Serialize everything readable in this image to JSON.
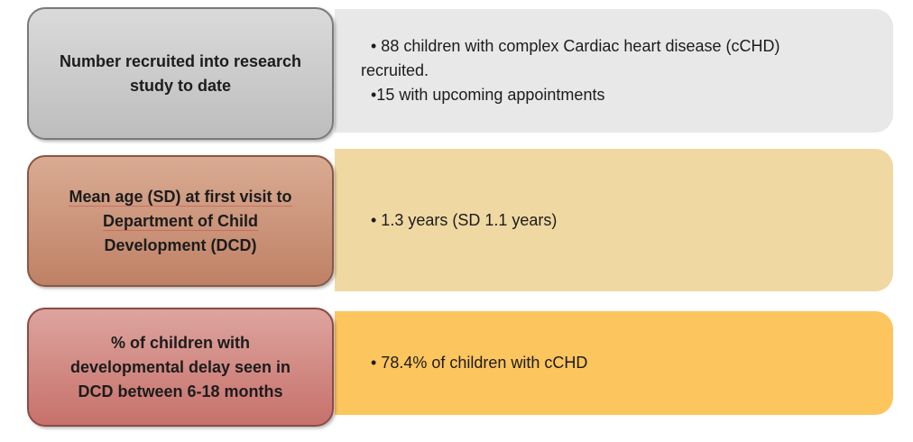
{
  "page": {
    "background": "#ffffff",
    "text_color": "#1c1c1c"
  },
  "rows": [
    {
      "label_lines": [
        {
          "text": "Number recruited into research"
        },
        {
          "text": "study to date"
        }
      ],
      "bullets": [
        "• 88 children with complex Cardiac heart disease (cCHD) recruited.",
        "•15 with upcoming appointments"
      ],
      "colors": {
        "label_gradient_top": "#dadada",
        "label_gradient_bottom": "#bdbdbd",
        "label_border": "#7a7a7a",
        "content_bg": "#e8e8e8"
      }
    },
    {
      "label_lines": [
        {
          "text": "Mean age (SD) at first visit to",
          "u": true
        },
        {
          "text": "Department of Child",
          "u": true
        },
        {
          "text": "Development (DCD)"
        }
      ],
      "bullets": [
        "• 1.3 years (SD 1.1 years)"
      ],
      "colors": {
        "label_gradient_top": "#d9ab92",
        "label_gradient_bottom": "#bf8166",
        "label_border": "#8a5743",
        "content_bg": "#f0d8a2"
      }
    },
    {
      "label_lines": [
        {
          "text": "% of children with"
        },
        {
          "text": "developmental delay seen in"
        },
        {
          "text": "DCD between 6-18 months"
        }
      ],
      "bullets": [
        "• 78.4% of children with cCHD"
      ],
      "colors": {
        "label_gradient_top": "#dda49e",
        "label_gradient_bottom": "#c7716b",
        "label_border": "#8c4a45",
        "content_bg": "#fdc55e"
      }
    }
  ]
}
